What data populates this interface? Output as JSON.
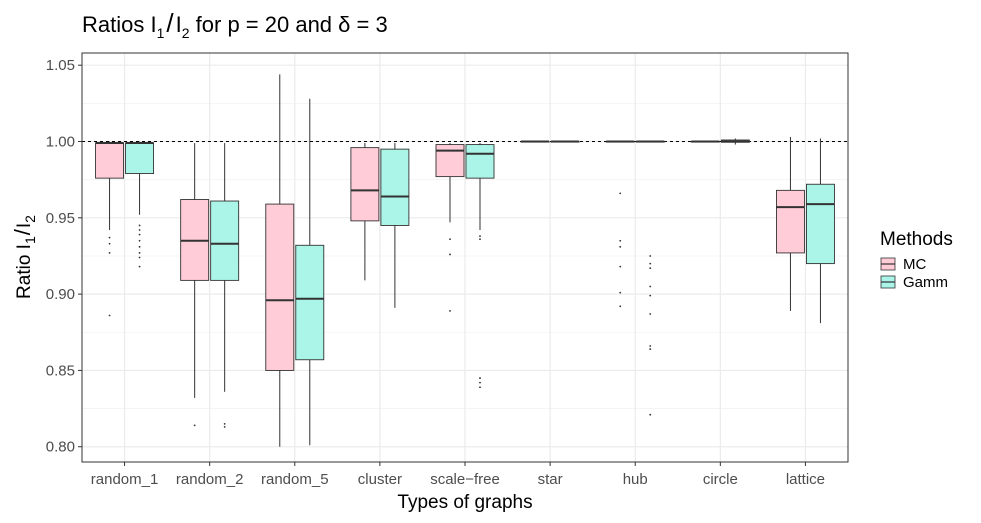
{
  "chart_data": {
    "type": "boxplot",
    "title_parts": [
      "Ratios I",
      "1",
      "/",
      "I",
      "2",
      " for p = 20 and δ = 3"
    ],
    "xlabel": "Types of graphs",
    "ylabel_parts": [
      "Ratio I",
      "1",
      "/",
      "I",
      "2"
    ],
    "ylim": [
      0.79,
      1.058
    ],
    "yticks": [
      0.8,
      0.85,
      0.9,
      0.95,
      1.0,
      1.05
    ],
    "ytick_labels": [
      "0.80",
      "0.85",
      "0.90",
      "0.95",
      "1.00",
      "1.05"
    ],
    "reference_line": 1.0,
    "categories": [
      "random_1",
      "random_2",
      "random_5",
      "cluster",
      "scale−free",
      "star",
      "hub",
      "circle",
      "lattice"
    ],
    "legend_title": "Methods",
    "series": [
      {
        "name": "MC",
        "color": "#ffccd8",
        "boxes": [
          {
            "whislo": 0.942,
            "q1": 0.976,
            "med": 0.999,
            "q3": 0.999,
            "whishi": 1.0,
            "outliers": [
              0.937,
              0.933,
              0.927,
              0.886
            ]
          },
          {
            "whislo": 0.832,
            "q1": 0.909,
            "med": 0.935,
            "q3": 0.962,
            "whishi": 0.999,
            "outliers": [
              0.814
            ]
          },
          {
            "whislo": 0.8,
            "q1": 0.85,
            "med": 0.896,
            "q3": 0.959,
            "whishi": 1.044,
            "outliers": []
          },
          {
            "whislo": 0.909,
            "q1": 0.948,
            "med": 0.968,
            "q3": 0.996,
            "whishi": 0.999,
            "outliers": []
          },
          {
            "whislo": 0.947,
            "q1": 0.977,
            "med": 0.994,
            "q3": 0.998,
            "whishi": 0.999,
            "outliers": [
              0.936,
              0.926,
              0.889
            ]
          },
          {
            "whislo": 1.0,
            "q1": 1.0,
            "med": 1.0,
            "q3": 1.0,
            "whishi": 1.0,
            "outliers": []
          },
          {
            "whislo": 1.0,
            "q1": 1.0,
            "med": 1.0,
            "q3": 1.0,
            "whishi": 1.0,
            "outliers": [
              0.966,
              0.935,
              0.931,
              0.918,
              0.901,
              0.892
            ]
          },
          {
            "whislo": 1.0,
            "q1": 1.0,
            "med": 1.0,
            "q3": 1.0,
            "whishi": 1.0,
            "outliers": []
          },
          {
            "whislo": 0.889,
            "q1": 0.927,
            "med": 0.957,
            "q3": 0.968,
            "whishi": 1.003,
            "outliers": []
          }
        ]
      },
      {
        "name": "Gamm",
        "color": "#aaf5e8",
        "boxes": [
          {
            "whislo": 0.952,
            "q1": 0.979,
            "med": 0.999,
            "q3": 0.999,
            "whishi": 1.0,
            "outliers": [
              0.945,
              0.942,
              0.939,
              0.935,
              0.931,
              0.927,
              0.924,
              0.918
            ]
          },
          {
            "whislo": 0.836,
            "q1": 0.909,
            "med": 0.933,
            "q3": 0.961,
            "whishi": 0.999,
            "outliers": [
              0.815,
              0.813
            ]
          },
          {
            "whislo": 0.801,
            "q1": 0.857,
            "med": 0.897,
            "q3": 0.932,
            "whishi": 1.028,
            "outliers": []
          },
          {
            "whislo": 0.891,
            "q1": 0.945,
            "med": 0.964,
            "q3": 0.995,
            "whishi": 0.999,
            "outliers": []
          },
          {
            "whislo": 0.942,
            "q1": 0.976,
            "med": 0.992,
            "q3": 0.998,
            "whishi": 0.999,
            "outliers": [
              0.938,
              0.936,
              0.845,
              0.842,
              0.839
            ]
          },
          {
            "whislo": 1.0,
            "q1": 1.0,
            "med": 1.0,
            "q3": 1.0,
            "whishi": 1.0,
            "outliers": []
          },
          {
            "whislo": 1.0,
            "q1": 1.0,
            "med": 1.0,
            "q3": 1.0,
            "whishi": 1.0,
            "outliers": [
              0.925,
              0.92,
              0.917,
              0.905,
              0.899,
              0.887,
              0.866,
              0.864,
              0.821
            ]
          },
          {
            "whislo": 0.998,
            "q1": 0.9995,
            "med": 1.0,
            "q3": 1.001,
            "whishi": 1.002,
            "outliers": []
          },
          {
            "whislo": 0.881,
            "q1": 0.92,
            "med": 0.959,
            "q3": 0.972,
            "whishi": 1.002,
            "outliers": []
          }
        ]
      }
    ]
  }
}
